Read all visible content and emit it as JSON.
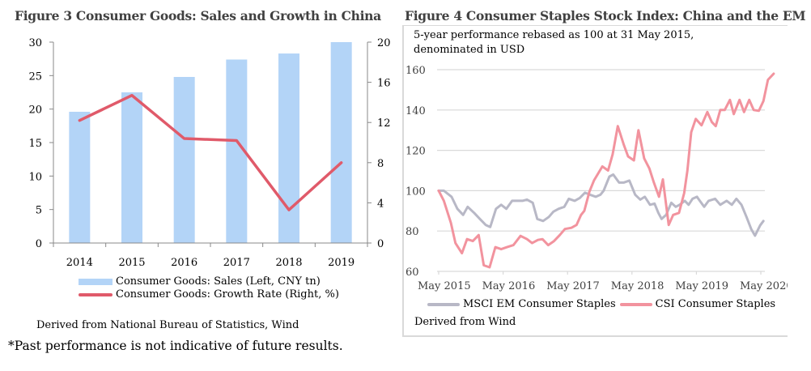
{
  "chart_data": [
    {
      "type": "bar",
      "title": "Figure 3 Consumer Goods: Sales and Growth in China",
      "categories": [
        "2014",
        "2015",
        "2016",
        "2017",
        "2018",
        "2019"
      ],
      "series": [
        {
          "name": "Consumer Goods: Sales (Left, CNY tn)",
          "type": "bar",
          "axis": "left",
          "color": "#b3d4f7",
          "values": [
            19.6,
            22.5,
            24.8,
            27.4,
            28.3,
            30.0
          ]
        },
        {
          "name": "Consumer Goods: Growth Rate (Right, %)",
          "type": "line",
          "axis": "right",
          "color": "#e05a6a",
          "values": [
            12.2,
            14.7,
            10.4,
            10.2,
            3.3,
            8.0
          ]
        }
      ],
      "y_left": {
        "ylim": [
          0,
          30
        ],
        "ticks": [
          "0",
          "5",
          "10",
          "15",
          "20",
          "25",
          "30"
        ]
      },
      "y_right": {
        "ylim": [
          0,
          20
        ],
        "ticks": [
          "0",
          "4",
          "8",
          "12",
          "16",
          "20"
        ]
      },
      "xlabel": "",
      "ylabel": "",
      "legend": "bottom",
      "grid": false,
      "source": "Derived from National Bureau of Statistics, Wind"
    },
    {
      "type": "line",
      "title": "Figure 4 Consumer Staples Stock Index: China and the EM",
      "subtitle_lines": [
        "5-year performance rebased as 100 at 31 May 2015,",
        "denominated in USD"
      ],
      "x_ticks": [
        "May 2015",
        "May 2016",
        "May 2017",
        "May 2018",
        "May 2019",
        "May 2020"
      ],
      "x_range_years": [
        2015.0,
        2020.0
      ],
      "ylim": [
        60,
        160
      ],
      "y_ticks": [
        "60",
        "80",
        "100",
        "120",
        "140",
        "160"
      ],
      "grid": true,
      "legend": "bottom",
      "series": [
        {
          "name": "MSCI EM Consumer Staples",
          "color": "#b8b8c6",
          "points": [
            [
              2015.0,
              100
            ],
            [
              2015.08,
              100
            ],
            [
              2015.2,
              97
            ],
            [
              2015.29,
              91
            ],
            [
              2015.38,
              88
            ],
            [
              2015.45,
              92
            ],
            [
              2015.55,
              89
            ],
            [
              2015.64,
              86
            ],
            [
              2015.73,
              83
            ],
            [
              2015.8,
              82
            ],
            [
              2015.89,
              91
            ],
            [
              2015.97,
              93
            ],
            [
              2016.05,
              91
            ],
            [
              2016.14,
              95
            ],
            [
              2016.3,
              95
            ],
            [
              2016.37,
              95.6
            ],
            [
              2016.46,
              94
            ],
            [
              2016.53,
              86
            ],
            [
              2016.62,
              85
            ],
            [
              2016.71,
              87
            ],
            [
              2016.78,
              89.6
            ],
            [
              2016.86,
              91
            ],
            [
              2016.95,
              92
            ],
            [
              2017.02,
              96
            ],
            [
              2017.11,
              95
            ],
            [
              2017.19,
              96.4
            ],
            [
              2017.27,
              99
            ],
            [
              2017.35,
              98
            ],
            [
              2017.44,
              97
            ],
            [
              2017.51,
              98
            ],
            [
              2017.56,
              100
            ],
            [
              2017.65,
              107
            ],
            [
              2017.71,
              108
            ],
            [
              2017.8,
              104
            ],
            [
              2017.87,
              104
            ],
            [
              2017.96,
              105
            ],
            [
              2018.05,
              98
            ],
            [
              2018.13,
              95.6
            ],
            [
              2018.2,
              97
            ],
            [
              2018.28,
              93
            ],
            [
              2018.35,
              93.6
            ],
            [
              2018.41,
              89
            ],
            [
              2018.46,
              86
            ],
            [
              2018.53,
              88
            ],
            [
              2018.61,
              94
            ],
            [
              2018.68,
              92
            ],
            [
              2018.74,
              93
            ],
            [
              2018.82,
              95
            ],
            [
              2018.88,
              93
            ],
            [
              2018.94,
              96
            ],
            [
              2019.01,
              97
            ],
            [
              2019.03,
              96
            ],
            [
              2019.12,
              92
            ],
            [
              2019.19,
              95
            ],
            [
              2019.29,
              96
            ],
            [
              2019.37,
              93
            ],
            [
              2019.47,
              95
            ],
            [
              2019.55,
              93
            ],
            [
              2019.62,
              96
            ],
            [
              2019.7,
              93
            ],
            [
              2019.78,
              86.8
            ],
            [
              2019.85,
              81
            ],
            [
              2019.91,
              77.7
            ],
            [
              2019.99,
              82.8
            ],
            [
              2020.04,
              85
            ]
          ]
        },
        {
          "name": "CSI Consumer Staples",
          "color": "#f2939e",
          "points": [
            [
              2015.0,
              100
            ],
            [
              2015.08,
              95
            ],
            [
              2015.19,
              84
            ],
            [
              2015.26,
              74
            ],
            [
              2015.36,
              69
            ],
            [
              2015.44,
              76
            ],
            [
              2015.53,
              75
            ],
            [
              2015.62,
              78
            ],
            [
              2015.7,
              63
            ],
            [
              2015.79,
              62
            ],
            [
              2015.88,
              72
            ],
            [
              2015.97,
              71
            ],
            [
              2016.06,
              72
            ],
            [
              2016.16,
              73
            ],
            [
              2016.27,
              77.6
            ],
            [
              2016.37,
              76
            ],
            [
              2016.45,
              74
            ],
            [
              2016.54,
              75.6
            ],
            [
              2016.61,
              76
            ],
            [
              2016.7,
              73
            ],
            [
              2016.79,
              75
            ],
            [
              2016.88,
              78
            ],
            [
              2016.96,
              81
            ],
            [
              2017.06,
              81.6
            ],
            [
              2017.14,
              83
            ],
            [
              2017.21,
              88
            ],
            [
              2017.26,
              90
            ],
            [
              2017.34,
              99.6
            ],
            [
              2017.41,
              105
            ],
            [
              2017.54,
              112
            ],
            [
              2017.63,
              110
            ],
            [
              2017.7,
              118
            ],
            [
              2017.78,
              132
            ],
            [
              2017.87,
              123
            ],
            [
              2017.94,
              117
            ],
            [
              2018.03,
              115
            ],
            [
              2018.1,
              130
            ],
            [
              2018.19,
              116
            ],
            [
              2018.27,
              111
            ],
            [
              2018.34,
              104
            ],
            [
              2018.42,
              97
            ],
            [
              2018.48,
              105.6
            ],
            [
              2018.57,
              83
            ],
            [
              2018.64,
              88
            ],
            [
              2018.73,
              89
            ],
            [
              2018.81,
              98.8
            ],
            [
              2018.86,
              110
            ],
            [
              2018.92,
              129
            ],
            [
              2018.99,
              135.6
            ],
            [
              2019.08,
              132.4
            ],
            [
              2019.14,
              136.8
            ],
            [
              2019.17,
              139
            ],
            [
              2019.24,
              134
            ],
            [
              2019.3,
              132
            ],
            [
              2019.37,
              140
            ],
            [
              2019.44,
              140
            ],
            [
              2019.52,
              145
            ],
            [
              2019.58,
              138
            ],
            [
              2019.67,
              145
            ],
            [
              2019.74,
              139
            ],
            [
              2019.82,
              145
            ],
            [
              2019.89,
              140
            ],
            [
              2019.97,
              139.6
            ],
            [
              2020.04,
              144.4
            ],
            [
              2020.11,
              155
            ],
            [
              2020.2,
              158
            ]
          ]
        }
      ],
      "source": "Derived from Wind"
    }
  ],
  "disclaimer": "*Past performance is not indicative of future results."
}
